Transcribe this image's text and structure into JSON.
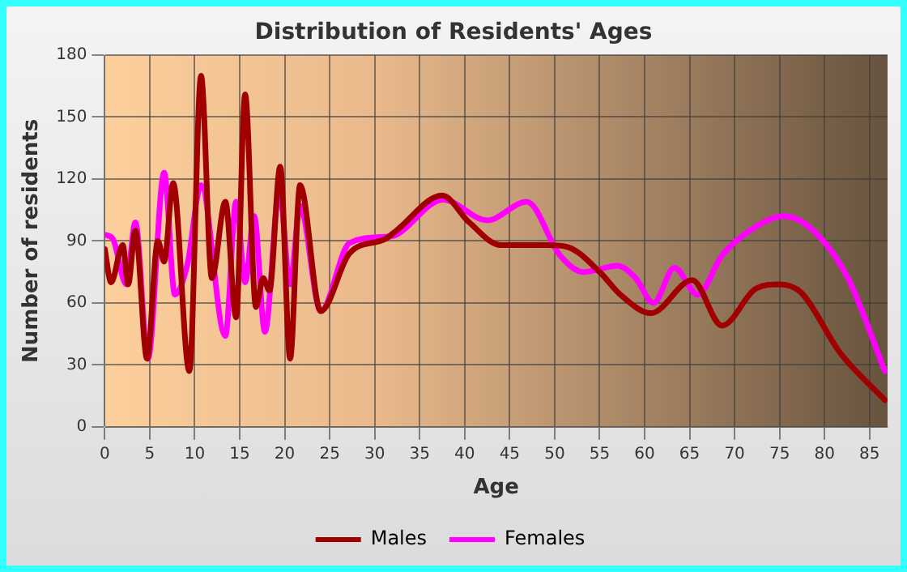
{
  "chart_data": {
    "type": "line",
    "title": "Distribution of Residents' Ages",
    "xlabel": "Age",
    "ylabel": "Number of residents",
    "xlim": [
      0,
      87
    ],
    "xticks": [
      0,
      5,
      10,
      15,
      20,
      25,
      30,
      35,
      40,
      45,
      50,
      55,
      60,
      65,
      70,
      75,
      80,
      85
    ],
    "ylim": [
      0,
      180
    ],
    "yticks": [
      0,
      30,
      60,
      90,
      120,
      150,
      180
    ],
    "grid": true,
    "legend": "bottom",
    "marker": "none",
    "line_style": "solid",
    "series": [
      {
        "name": "Males",
        "color": "#a00000",
        "x": [
          0,
          0.7,
          2,
          2.6,
          3.4,
          4.7,
          5.9,
          6.6,
          7.6,
          9.4,
          10.7,
          11.9,
          13.4,
          14.6,
          15.6,
          16.8,
          17.6,
          18.3,
          19.5,
          20.6,
          21.7,
          24,
          27.2,
          31.2,
          32.4,
          37.5,
          40.5,
          44,
          49.2,
          51.5,
          55,
          57.3,
          60.7,
          65.3,
          68.6,
          72.4,
          75,
          77.4,
          81.7,
          86.7
        ],
        "values": [
          86,
          70,
          88,
          69,
          95,
          33,
          90,
          80,
          118,
          27,
          170,
          72,
          109,
          53,
          161,
          58,
          72,
          66,
          126,
          33,
          117,
          56,
          84,
          91,
          95,
          112,
          99,
          88,
          88,
          87,
          75,
          64,
          55,
          71,
          49,
          67,
          69,
          65,
          36,
          13
        ]
      },
      {
        "name": "Females",
        "color": "#ff00ff",
        "x": [
          0,
          0.9,
          2.4,
          3.4,
          4.8,
          6.6,
          7.8,
          9.2,
          10.7,
          13.4,
          14.6,
          15.6,
          16.6,
          17.8,
          19.4,
          20.6,
          21.7,
          24,
          27.2,
          31.2,
          32.4,
          37.6,
          42.5,
          46.9,
          50.6,
          53.2,
          57,
          59,
          61,
          63.3,
          65.9,
          68.6,
          72.4,
          75.4,
          78.5,
          82.6,
          86.7
        ],
        "values": [
          93,
          91,
          69,
          99,
          33,
          123,
          64,
          79,
          117,
          44,
          109,
          70,
          102,
          46,
          114,
          69,
          107,
          56,
          89,
          92,
          93,
          110,
          100,
          109,
          83,
          75,
          78,
          72,
          60,
          77,
          64,
          83,
          97,
          102,
          96,
          72,
          27
        ]
      }
    ]
  }
}
